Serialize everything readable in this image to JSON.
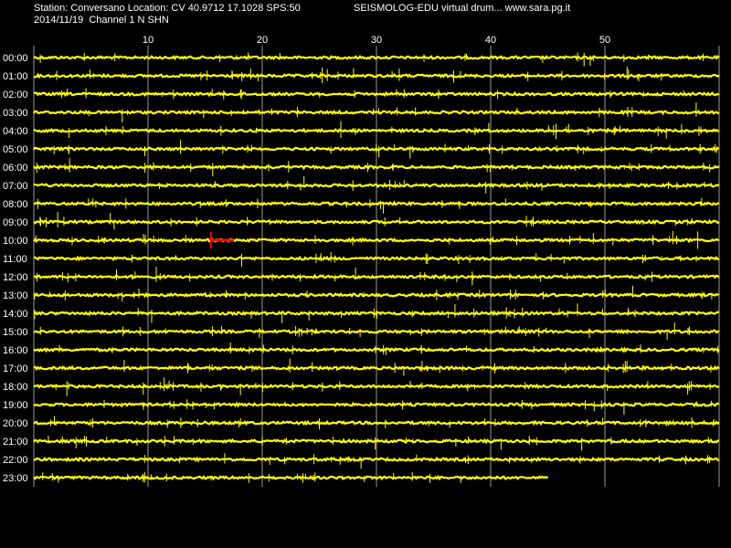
{
  "header": {
    "station_line": "Station: Conversano Location: CV 40.9712 17.1028 SPS:50",
    "title_right": "SEISMOLOG-EDU virtual drum... www.sara.pg.it",
    "date_line": "2014/11/19  Channel 1 N SHN"
  },
  "chart_data": {
    "type": "line",
    "title": "SEISMOLOG-EDU virtual drum... www.sara.pg.it",
    "xlabel": "",
    "ylabel": "",
    "x_range_minutes": [
      0,
      60
    ],
    "x_ticks": [
      10,
      20,
      30,
      40,
      50
    ],
    "grid": true,
    "hours": [
      "00:00",
      "01:00",
      "02:00",
      "03:00",
      "04:00",
      "05:00",
      "06:00",
      "07:00",
      "08:00",
      "09:00",
      "10:00",
      "11:00",
      "12:00",
      "13:00",
      "14:00",
      "15:00",
      "16:00",
      "17:00",
      "18:00",
      "19:00",
      "20:00",
      "21:00",
      "22:00",
      "23:00"
    ],
    "last_trace_end_minute": 45,
    "colors": {
      "trace": "#ffff00",
      "event": "#ff0000",
      "grid": "#9a9a9a",
      "background": "#000000"
    },
    "event": {
      "hour": "10:00",
      "start_minute": 15.5,
      "end_minute": 17.5
    }
  }
}
